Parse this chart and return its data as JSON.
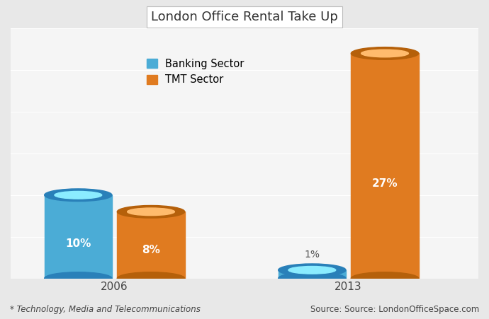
{
  "title": "London Office Rental Take Up",
  "categories": [
    "2006",
    "2013"
  ],
  "banking_values": [
    10,
    1
  ],
  "tmt_values": [
    8,
    27
  ],
  "banking_color": "#4BACD6",
  "banking_color_dark": "#2980B9",
  "tmt_color": "#E07B20",
  "tmt_color_dark": "#B5600A",
  "banking_label": "Banking Sector",
  "tmt_label": "TMT Sector",
  "bar_width": 0.13,
  "ylim": [
    0,
    30
  ],
  "background_color": "#E8E8E8",
  "plot_bg_color": "#F5F5F5",
  "footnote": "* Technology, Media and Telecommunications",
  "source": "Source: Source: LondonOfficeSpace.com",
  "title_fontsize": 13,
  "tick_fontsize": 11,
  "note_fontsize": 8.5,
  "bar_label_fontsize": 11,
  "legend_fontsize": 10.5,
  "group_positions": [
    0.25,
    0.7
  ]
}
